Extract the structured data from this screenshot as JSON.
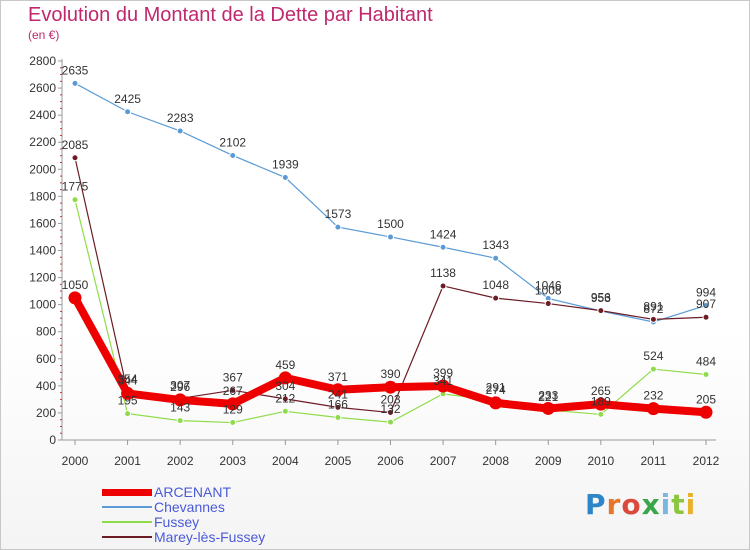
{
  "title": "Evolution du Montant de la Dette par Habitant",
  "unit": "(en €)",
  "logo": {
    "letters": [
      "P",
      "r",
      "o",
      "x",
      "i",
      "t",
      "i"
    ],
    "colors": [
      "#2e86c8",
      "#e8762a",
      "#d94a3a",
      "#3aa64a",
      "#7ab7e0",
      "#8cc63e",
      "#e8b32a"
    ]
  },
  "chart_data": {
    "type": "line",
    "title": "Evolution du Montant de la Dette par Habitant",
    "xlabel": "",
    "ylabel": "(en €)",
    "ylim": [
      0,
      2800
    ],
    "yticks": [
      0,
      200,
      400,
      600,
      800,
      1000,
      1200,
      1400,
      1600,
      1800,
      2000,
      2200,
      2400,
      2600,
      2800
    ],
    "grid": false,
    "legend_position": "bottom",
    "x": [
      "2000",
      "2001",
      "2002",
      "2003",
      "2004",
      "2005",
      "2006",
      "2007",
      "2008",
      "2009",
      "2010",
      "2011",
      "2012"
    ],
    "series": [
      {
        "name": "Chevannes",
        "color": "#5b9bd5",
        "width": 1.2,
        "values": [
          2635,
          2425,
          2283,
          2102,
          1939,
          1573,
          1500,
          1424,
          1343,
          1046,
          953,
          872,
          994
        ]
      },
      {
        "name": "Marey-lès-Fussey",
        "color": "#6b1c24",
        "width": 1.2,
        "values": [
          2085,
          354,
          307,
          367,
          304,
          241,
          203,
          1138,
          1048,
          1008,
          956,
          891,
          907
        ]
      },
      {
        "name": "Fussey",
        "color": "#8fdc4a",
        "width": 1.2,
        "values": [
          1775,
          195,
          143,
          129,
          212,
          166,
          132,
          341,
          291,
          221,
          189,
          524,
          484
        ]
      },
      {
        "name": "ARCENANT",
        "color": "#ee0000",
        "width": 8,
        "values": [
          1050,
          344,
          296,
          267,
          459,
          371,
          390,
          399,
          274,
          233,
          265,
          232,
          205
        ]
      }
    ]
  }
}
